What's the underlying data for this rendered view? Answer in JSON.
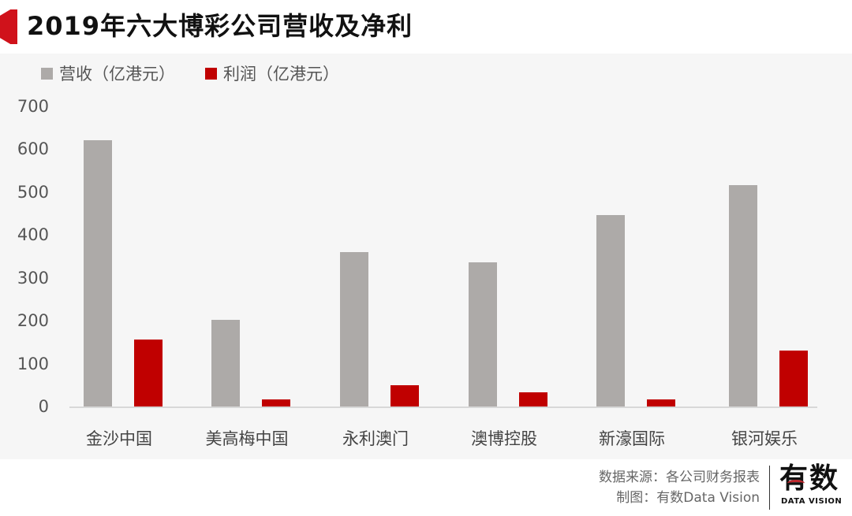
{
  "header": {
    "title": "2019年六大博彩公司营收及净利"
  },
  "legend": [
    {
      "label": "营收（亿港元）",
      "color": "#adaaa8"
    },
    {
      "label": "利润（亿港元）",
      "color": "#c00000"
    }
  ],
  "y_axis": {
    "ticks": [
      "0",
      "100",
      "200",
      "300",
      "400",
      "500",
      "600",
      "700"
    ]
  },
  "footer": {
    "source": "数据来源：各公司财务报表",
    "credit": "制图：有数Data Vision",
    "logo_main": "有数",
    "logo_sub": "DATA VISION"
  },
  "colors": {
    "accent": "#d0121b",
    "revenue": "#adaaa8",
    "profit": "#c00000",
    "plot_bg": "#f6f6f6"
  },
  "chart_data": {
    "type": "bar",
    "title": "2019年六大博彩公司营收及净利",
    "xlabel": "",
    "ylabel": "",
    "ylim": [
      0,
      700
    ],
    "yticks": [
      0,
      100,
      200,
      300,
      400,
      500,
      600,
      700
    ],
    "grid": false,
    "legend_position": "top-left",
    "categories": [
      "金沙中国",
      "美高梅中国",
      "永利澳门",
      "澳博控股",
      "新濠国际",
      "银河娱乐"
    ],
    "series": [
      {
        "name": "营收（亿港元）",
        "color": "#adaaa8",
        "values": [
          621,
          202,
          360,
          336,
          447,
          517
        ]
      },
      {
        "name": "利润（亿港元）",
        "color": "#c00000",
        "values": [
          156,
          17,
          50,
          33,
          16,
          130
        ]
      }
    ]
  }
}
